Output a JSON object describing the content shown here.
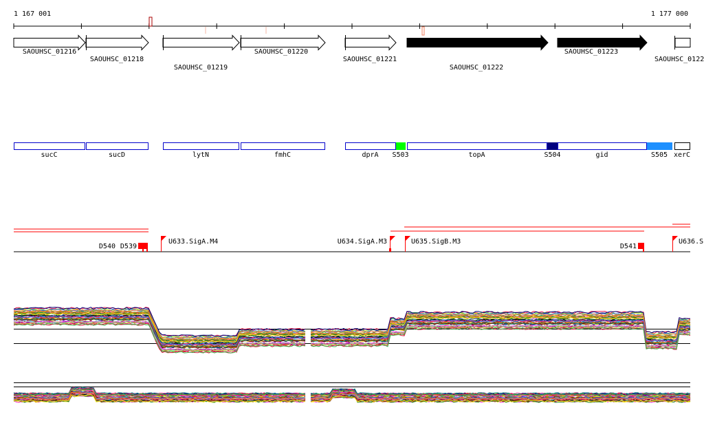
{
  "ruler": {
    "start_label": "1 167 001",
    "end_label": "1 177 000"
  },
  "genes": [
    {
      "id": "SAOUHSC_01216",
      "filled": false
    },
    {
      "id": "SAOUHSC_01218",
      "filled": false
    },
    {
      "id": "SAOUHSC_01219",
      "filled": false
    },
    {
      "id": "SAOUHSC_01220",
      "filled": false
    },
    {
      "id": "SAOUHSC_01221",
      "filled": false
    },
    {
      "id": "SAOUHSC_01222",
      "filled": true
    },
    {
      "id": "SAOUHSC_01223",
      "filled": true
    },
    {
      "id": "SAOUHSC_0122",
      "filled": false
    }
  ],
  "annotations": [
    {
      "label": "sucC",
      "color": "#0000cc"
    },
    {
      "label": "sucD",
      "color": "#0000cc"
    },
    {
      "label": "lytN",
      "color": "#0000cc"
    },
    {
      "label": "fmhC",
      "color": "#0000cc"
    },
    {
      "label": "dprA",
      "color": "#0000cc"
    },
    {
      "label": "S503",
      "color": "#00ff00"
    },
    {
      "label": "topA",
      "color": "#0000cc"
    },
    {
      "label": "S504",
      "color": "#000080"
    },
    {
      "label": "gid",
      "color": "#0000cc"
    },
    {
      "label": "S505",
      "color": "#1e90ff"
    },
    {
      "label": "xerC",
      "color": "#000000"
    }
  ],
  "features": [
    {
      "label": "D539",
      "type": "box"
    },
    {
      "label": "D540",
      "type": "box"
    },
    {
      "label": "U633.SigA.M4",
      "type": "flag"
    },
    {
      "label": "U634.SigA.M3",
      "type": "flag"
    },
    {
      "label": "U635.SigB.M3",
      "type": "flag"
    },
    {
      "label": "D541",
      "type": "box"
    },
    {
      "label": "U636.S",
      "type": "flag"
    }
  ],
  "colors": {
    "feature": "#ff0000",
    "axis": "#000000"
  }
}
